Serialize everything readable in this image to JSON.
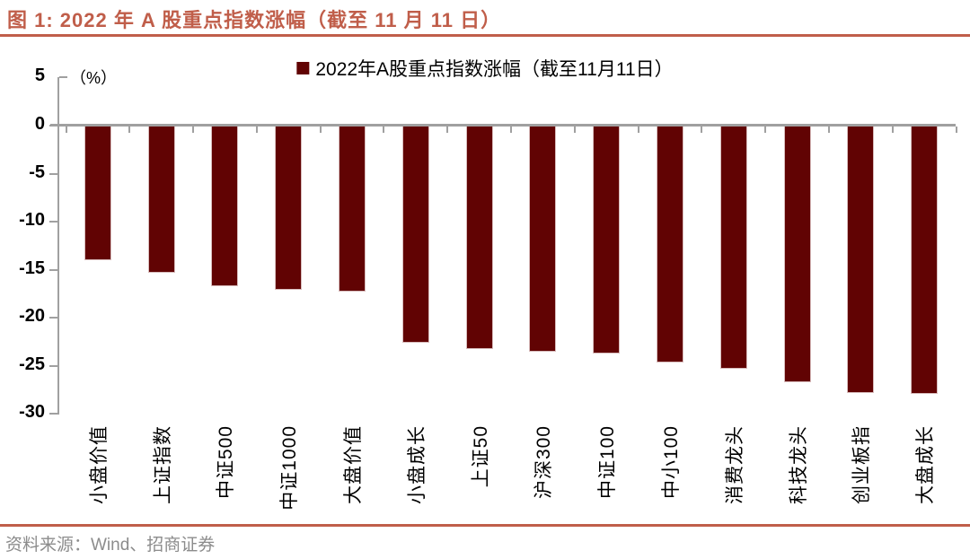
{
  "doc": {
    "figure_title": "图 1: 2022 年 A 股重点指数涨幅（截至 11 月 11 日）",
    "source": "资料来源：Wind、招商证券"
  },
  "chart_data": {
    "type": "bar",
    "title": "2022年A股重点指数涨幅（截至11月11日）",
    "legend": [
      "2022年A股重点指数涨幅（截至11月11日）"
    ],
    "legend_position": "top-center",
    "unit_label": "（%）",
    "categories": [
      "小盘价值",
      "上证指数",
      "中证500",
      "中证1000",
      "大盘价值",
      "小盘成长",
      "上证50",
      "沪深300",
      "中证100",
      "中小100",
      "消费龙头",
      "科技龙头",
      "创业板指",
      "大盘成长"
    ],
    "values": [
      -13.9,
      -15.2,
      -16.6,
      -17.0,
      -17.2,
      -22.5,
      -23.1,
      -23.4,
      -23.6,
      -24.5,
      -25.2,
      -26.6,
      -27.7,
      -27.8
    ],
    "xlabel": "",
    "ylabel": "",
    "ylim": [
      -30,
      5
    ],
    "yticks": [
      5,
      0,
      -5,
      -10,
      -15,
      -20,
      -25,
      -30
    ],
    "grid": false
  },
  "colors": {
    "accent": "#C05E4A",
    "bar": "#610303",
    "axis": "#A0A0A0",
    "text": "#1A1A1A",
    "muted": "#8C8C8C"
  }
}
